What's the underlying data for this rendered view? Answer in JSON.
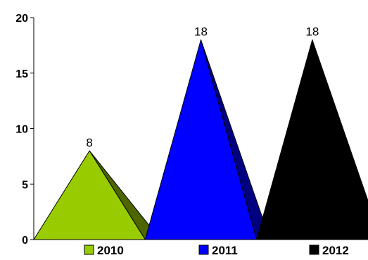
{
  "chart_data": {
    "type": "bar",
    "bar_shape": "pyramid",
    "categories": [
      "2010",
      "2011",
      "2012"
    ],
    "values": [
      8,
      18,
      18
    ],
    "colors": [
      "#99cc00",
      "#0000ff",
      "#000000"
    ],
    "side_colors": [
      "#4d6600",
      "#000080",
      "#000000"
    ],
    "title": "",
    "xlabel": "",
    "ylabel": "",
    "ylim": [
      0,
      20
    ],
    "yticks": [
      0,
      5,
      10,
      15,
      20
    ],
    "data_labels": [
      "8",
      "18",
      "18"
    ],
    "legend": {
      "placement": "bottom",
      "entries": [
        "2010",
        "2011",
        "2012"
      ]
    },
    "grid": false
  }
}
